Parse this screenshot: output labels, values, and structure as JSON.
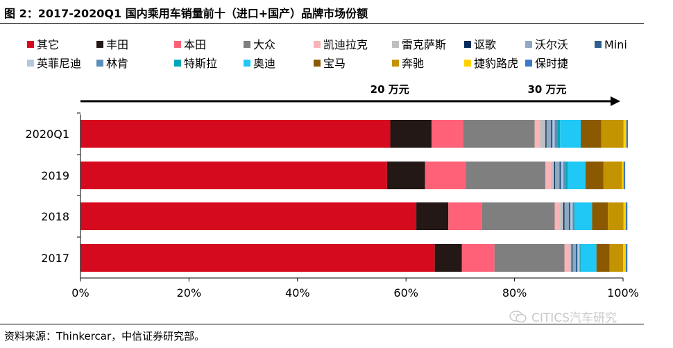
{
  "title": "图 2：2017-2020Q1 国内乘用车销量前十（进口+国产）品牌市场份额",
  "source": "资料来源：Thinkercar，中信证券研究部。",
  "watermark": "CITICS汽车研究",
  "icons": {
    "watermark": "wechat-icon"
  },
  "chart_data": {
    "type": "bar",
    "orientation": "horizontal",
    "stacked": true,
    "categories": [
      "2020Q1",
      "2019",
      "2018",
      "2017"
    ],
    "xlim": [
      0,
      100
    ],
    "xticks": [
      "0%",
      "20%",
      "40%",
      "60%",
      "80%",
      "100%"
    ],
    "grid": false,
    "legend_position": "top",
    "annotations": [
      {
        "text": "20 万元",
        "x": 57
      },
      {
        "text": "30 万元",
        "x": 86
      }
    ],
    "arrow": {
      "from": 0,
      "to": 100
    },
    "series": [
      {
        "name": "其它",
        "color": "#D60A1E",
        "values": [
          57.1,
          56.5,
          61.9,
          65.3
        ]
      },
      {
        "name": "丰田",
        "color": "#231815",
        "values": [
          7.6,
          7.0,
          5.9,
          5.0
        ]
      },
      {
        "name": "本田",
        "color": "#FF6178",
        "values": [
          5.8,
          7.6,
          6.2,
          6.0
        ]
      },
      {
        "name": "大众",
        "color": "#7F7F7F",
        "values": [
          13.2,
          14.6,
          13.4,
          12.9
        ]
      },
      {
        "name": "凯迪拉克",
        "color": "#F8B4B8",
        "values": [
          1.0,
          1.0,
          1.0,
          1.0
        ]
      },
      {
        "name": "雷克萨斯",
        "color": "#BFBFBF",
        "values": [
          1.0,
          0.6,
          0.6,
          0.3
        ]
      },
      {
        "name": "讴歌",
        "color": "#002B5C",
        "values": [
          0.2,
          0.2,
          0.2,
          0.2
        ]
      },
      {
        "name": "沃尔沃",
        "color": "#8EA9C1",
        "values": [
          0.8,
          0.8,
          0.8,
          0.6
        ]
      },
      {
        "name": "Mini",
        "color": "#2E5E8E",
        "values": [
          0.3,
          0.3,
          0.3,
          0.3
        ]
      },
      {
        "name": "英菲尼迪",
        "color": "#B4C7DC",
        "values": [
          0.4,
          0.4,
          0.4,
          0.4
        ]
      },
      {
        "name": "林肯",
        "color": "#5B8DB8",
        "values": [
          0.5,
          0.5,
          0.3,
          0.1
        ]
      },
      {
        "name": "特斯拉",
        "color": "#00A6B8",
        "values": [
          0.5,
          0.3,
          0.1,
          0.1
        ]
      },
      {
        "name": "奥迪",
        "color": "#1FC8F5",
        "values": [
          3.8,
          3.3,
          3.2,
          2.9
        ]
      },
      {
        "name": "宝马",
        "color": "#8B5A00",
        "values": [
          3.8,
          3.3,
          2.9,
          2.4
        ]
      },
      {
        "name": "奔驰",
        "color": "#C49400",
        "values": [
          4.1,
          3.4,
          2.9,
          2.5
        ]
      },
      {
        "name": "捷豹路虎",
        "color": "#FFD200",
        "values": [
          0.5,
          0.3,
          0.4,
          0.5
        ]
      },
      {
        "name": "保时捷",
        "color": "#3F77C7",
        "values": [
          0.3,
          0.3,
          0.3,
          0.3
        ]
      }
    ]
  }
}
